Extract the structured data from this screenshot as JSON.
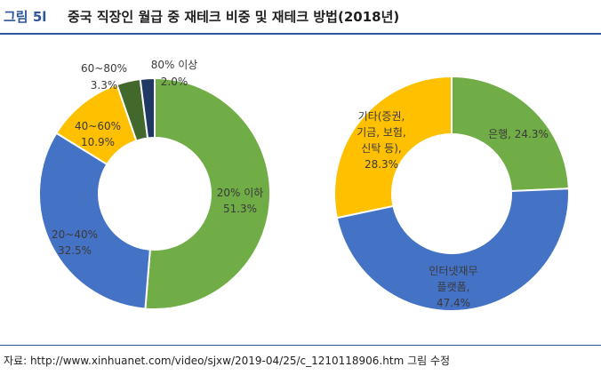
{
  "header": {
    "figure_no": "그림 5l",
    "title": "중국 직장인 월급 중 재테크 비중 및 재테크 방법(2018년)"
  },
  "source": "자료: http://www.xinhuanet.com/video/sjxw/2019-04/25/c_1210118906.htm 그림 수정",
  "chart_data": [
    {
      "type": "pie",
      "donut": true,
      "title": "",
      "slices": [
        {
          "label": "20% 이하",
          "value": 51.3,
          "text": "51.3%",
          "color": "#70ad47"
        },
        {
          "label": "20~40%",
          "value": 32.5,
          "text": "32.5%",
          "color": "#4472c4"
        },
        {
          "label": "40~60%",
          "value": 10.9,
          "text": "10.9%",
          "color": "#ffc000"
        },
        {
          "label": "60~80%",
          "value": 3.3,
          "text": "3.3%",
          "color": "#43682b"
        },
        {
          "label": "80% 이상",
          "value": 2.0,
          "text": "2.0%",
          "color": "#203864"
        }
      ]
    },
    {
      "type": "pie",
      "donut": true,
      "title": "",
      "slices": [
        {
          "label": "은행",
          "value": 24.3,
          "text": "24.3%",
          "color": "#70ad47"
        },
        {
          "label": "인터넷재무 플랫폼",
          "value": 47.4,
          "text": "47.4%",
          "color": "#4472c4"
        },
        {
          "label": "기타(증권, 기금, 보험, 신탁 등)",
          "value": 28.3,
          "text": "28.3%",
          "color": "#ffc000"
        }
      ]
    }
  ]
}
